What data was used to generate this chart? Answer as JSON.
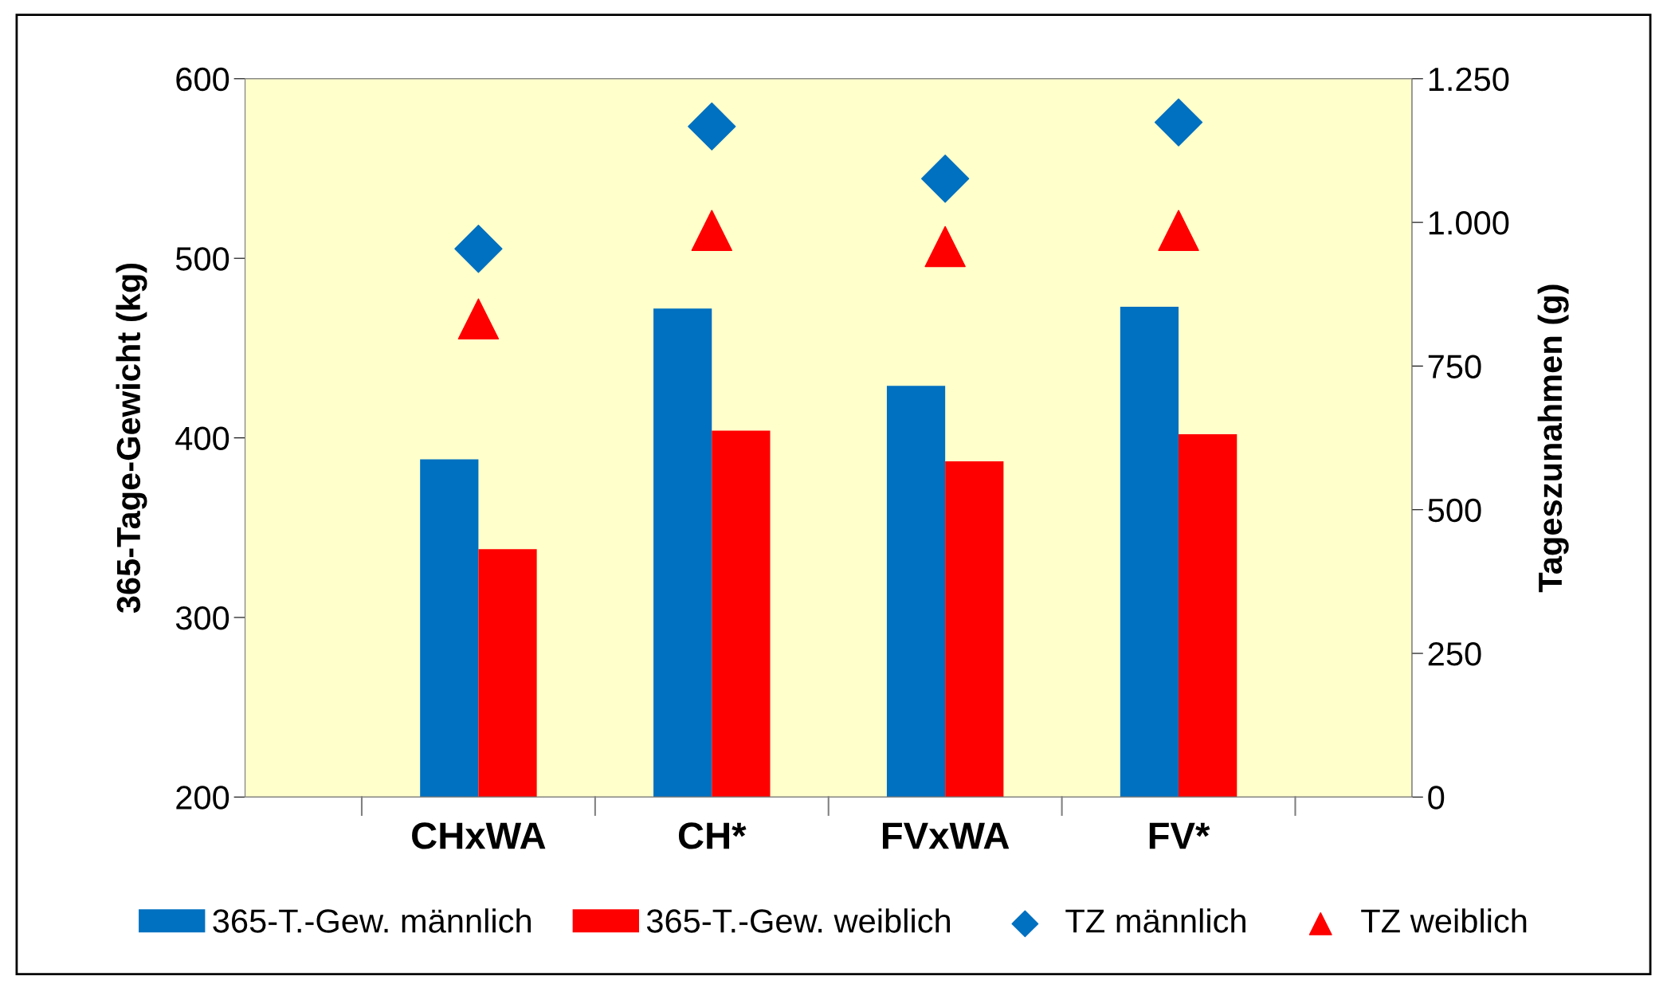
{
  "chart_data": {
    "type": "bar",
    "categories": [
      "CHxWA",
      "CH*",
      "FVxWA",
      "FV*"
    ],
    "ylabel": "365-Tage-Gewicht (kg)",
    "y2label": "Tageszunahmen (g)",
    "ylim": [
      200,
      600
    ],
    "yticks": [
      200,
      300,
      400,
      500,
      600
    ],
    "y2lim": [
      0,
      1250
    ],
    "y2ticks": [
      0,
      250,
      500,
      750,
      {
        "value": 1000,
        "label": "1.000"
      },
      {
        "value": 1250,
        "label": "1.250"
      }
    ],
    "grid": false,
    "legend": "bottom",
    "series": [
      {
        "name": "365-T.-Gew. männlich",
        "color": "#0070c0",
        "values": [
          388,
          472,
          429,
          473
        ]
      },
      {
        "name": "365-T.-Gew. weiblich",
        "color": "#ff0000",
        "values": [
          338,
          404,
          387,
          402
        ]
      },
      {
        "name": "TZ männlich",
        "color": "#0070c0",
        "type": "scatter",
        "axis": "y2",
        "marker": "diamond",
        "values": [
          954,
          1167,
          1076,
          1174
        ]
      },
      {
        "name": "TZ weiblich",
        "color": "#ff0000",
        "type": "scatter",
        "axis": "y2",
        "marker": "triangle",
        "values": [
          832,
          986,
          958,
          986
        ]
      }
    ]
  }
}
